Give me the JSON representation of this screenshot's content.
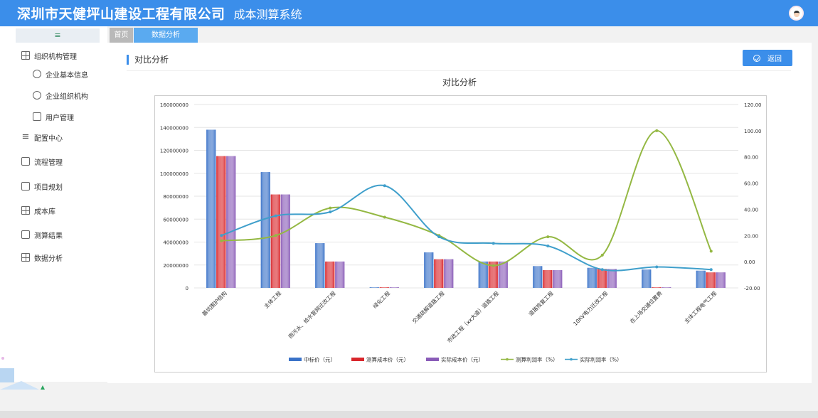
{
  "header": {
    "company": "深圳市天健坪山建设工程有限公司",
    "system": "成本测算系统"
  },
  "sidebar": {
    "toggle": "≡",
    "items": [
      {
        "label": "组织机构管理",
        "icon": "grid-icon"
      },
      {
        "label": "企业基本信息",
        "icon": "info-circle-icon"
      },
      {
        "label": "企业组织机构",
        "icon": "org-icon"
      },
      {
        "label": "用户管理",
        "icon": "user-icon"
      },
      {
        "label": "配置中心",
        "icon": "list-icon"
      },
      {
        "label": "流程管理",
        "icon": "chart-box-icon"
      },
      {
        "label": "项目规划",
        "icon": "doc-icon"
      },
      {
        "label": "成本库",
        "icon": "tree-icon"
      },
      {
        "label": "测算结果",
        "icon": "bar-chart-icon"
      },
      {
        "label": "数据分析",
        "icon": "table-icon"
      }
    ]
  },
  "tabs": {
    "home": "首页",
    "active": "数据分析"
  },
  "page": {
    "section_title": "对比分析",
    "back_label": "返回"
  },
  "colors": {
    "blue_bar": "#3a72c8",
    "red_bar": "#d9262b",
    "purple_bar": "#8a5cb8",
    "green_line": "#94b843",
    "blue_line": "#3f9fcb"
  },
  "chart_data": {
    "type": "bar",
    "title": "对比分析",
    "categories": [
      "基坑围护结构",
      "主体工程",
      "雨污水、给水管网迁改工程",
      "绿化工程",
      "交通疏解道路工程",
      "市政工程（xx大道）道路工程",
      "道路恢复工程",
      "10KV电力迁改工程",
      "在上场交通位置费",
      "主体工程电气工程"
    ],
    "ylim": [
      0,
      160000000
    ],
    "yticks": [
      "160000000",
      "140000000",
      "120000000",
      "100000000",
      "80000000",
      "60000000",
      "40000000",
      "20000000",
      "0"
    ],
    "y2lim": [
      -20,
      120
    ],
    "y2ticks": [
      "120.00",
      "100.00",
      "80.00",
      "60.00",
      "40.00",
      "20.00",
      "0.00",
      "-20.00"
    ],
    "series": [
      {
        "name": "中标价（元）",
        "type": "bar",
        "values": [
          138000000,
          101000000,
          39000000,
          0,
          31000000,
          23000000,
          19000000,
          17500000,
          16000000,
          15000000
        ]
      },
      {
        "name": "测算成本价（元）",
        "type": "bar",
        "values": [
          115000000,
          81500000,
          23000000,
          500000,
          25000000,
          23000000,
          15500000,
          16500000,
          0,
          13500000
        ]
      },
      {
        "name": "实际成本价（元）",
        "type": "bar",
        "values": [
          115000000,
          81500000,
          23000000,
          0,
          25000000,
          23000000,
          15500000,
          16500000,
          0,
          13500000
        ]
      },
      {
        "name": "测算利润率（%）",
        "type": "line",
        "axis": "right",
        "values": [
          16,
          20,
          41,
          34,
          20,
          -3,
          19,
          5,
          100,
          8
        ]
      },
      {
        "name": "实际利润率（%）",
        "type": "line",
        "axis": "right",
        "values": [
          20,
          35,
          38,
          58,
          19,
          14,
          12,
          -6,
          -4,
          -6
        ]
      }
    ],
    "legend": "bottom"
  }
}
